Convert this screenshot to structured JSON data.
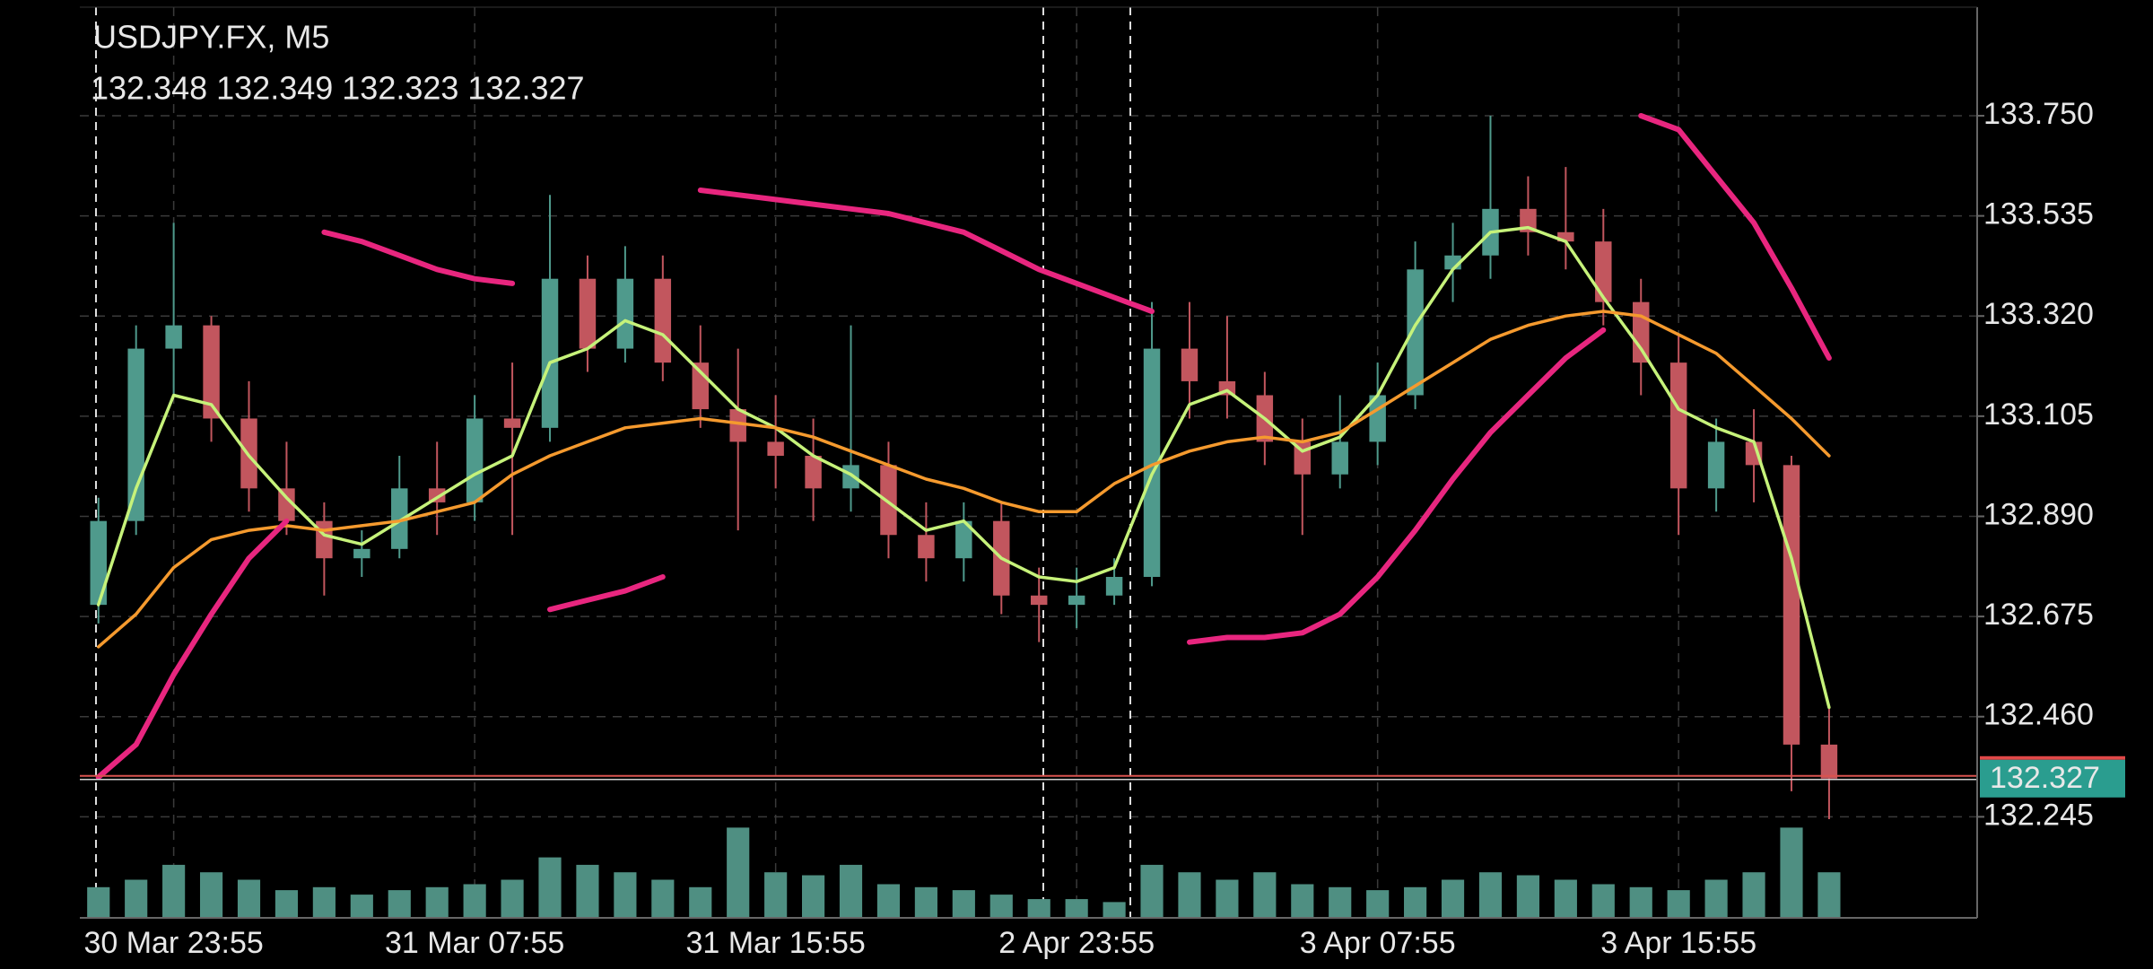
{
  "chart_data": {
    "type": "candlestick",
    "title": "USDJPY.FX, M5",
    "ohlc": [
      132.348,
      132.349,
      132.323,
      132.327
    ],
    "categories": [
      null,
      null,
      "30 Mar 23:55",
      null,
      null,
      null,
      null,
      null,
      null,
      null,
      "31 Mar 07:55",
      null,
      null,
      null,
      null,
      null,
      null,
      null,
      "31 Mar 15:55",
      null,
      null,
      null,
      null,
      null,
      null,
      null,
      "2 Apr 23:55",
      null,
      null,
      null,
      null,
      null,
      null,
      null,
      "3 Apr 07:55",
      null,
      null,
      null,
      null,
      null,
      null,
      null,
      "3 Apr 15:55",
      null,
      null,
      null,
      null
    ],
    "open": [
      132.7,
      132.88,
      133.25,
      133.3,
      133.1,
      132.95,
      132.88,
      132.8,
      132.82,
      132.95,
      132.92,
      133.1,
      133.08,
      133.4,
      133.25,
      133.4,
      133.22,
      133.12,
      133.05,
      133.02,
      132.95,
      133.0,
      132.85,
      132.8,
      132.88,
      132.72,
      132.7,
      132.72,
      132.76,
      133.25,
      133.18,
      133.15,
      133.05,
      132.98,
      133.05,
      133.15,
      133.42,
      133.45,
      133.55,
      133.5,
      133.48,
      133.35,
      133.22,
      132.95,
      133.05,
      133.0,
      132.4
    ],
    "high": [
      132.93,
      133.3,
      133.52,
      133.32,
      133.18,
      133.05,
      132.92,
      132.86,
      133.02,
      133.05,
      133.15,
      133.22,
      133.58,
      133.45,
      133.47,
      133.45,
      133.3,
      133.25,
      133.15,
      133.1,
      133.3,
      133.05,
      132.92,
      132.92,
      132.92,
      132.78,
      132.78,
      132.8,
      133.35,
      133.35,
      133.32,
      133.2,
      133.1,
      133.15,
      133.22,
      133.48,
      133.52,
      133.75,
      133.62,
      133.64,
      133.55,
      133.4,
      133.28,
      133.1,
      133.12,
      133.02,
      132.48
    ],
    "low": [
      132.66,
      132.85,
      133.15,
      133.05,
      132.9,
      132.85,
      132.72,
      132.76,
      132.8,
      132.85,
      132.88,
      132.85,
      133.05,
      133.2,
      133.22,
      133.18,
      133.08,
      132.86,
      132.95,
      132.88,
      132.9,
      132.8,
      132.75,
      132.75,
      132.68,
      132.62,
      132.65,
      132.7,
      132.74,
      133.1,
      133.1,
      133.0,
      132.85,
      132.95,
      133.0,
      133.12,
      133.35,
      133.4,
      133.45,
      133.42,
      133.3,
      133.15,
      132.85,
      132.9,
      132.92,
      132.3,
      132.24
    ],
    "close": [
      132.88,
      133.25,
      133.3,
      133.1,
      132.95,
      132.88,
      132.8,
      132.82,
      132.95,
      132.92,
      133.1,
      133.08,
      133.4,
      133.25,
      133.4,
      133.22,
      133.12,
      133.05,
      133.02,
      132.95,
      133.0,
      132.85,
      132.8,
      132.88,
      132.72,
      132.7,
      132.72,
      132.76,
      133.25,
      133.18,
      133.15,
      133.05,
      132.98,
      133.05,
      133.15,
      133.42,
      133.45,
      133.55,
      133.5,
      133.48,
      133.35,
      133.22,
      132.95,
      133.05,
      133.0,
      132.4,
      132.327
    ],
    "volume": [
      20,
      25,
      35,
      30,
      25,
      18,
      20,
      15,
      18,
      20,
      22,
      25,
      40,
      35,
      30,
      25,
      20,
      60,
      30,
      28,
      35,
      22,
      20,
      18,
      15,
      12,
      12,
      10,
      35,
      30,
      25,
      30,
      22,
      20,
      18,
      20,
      25,
      30,
      28,
      25,
      22,
      20,
      18,
      25,
      30,
      60,
      30
    ],
    "up_color": "#4f9a8c",
    "down_color": "#c2565e",
    "volume_color": "#4f8f82",
    "series": [
      {
        "color": "#c6f27a",
        "values": [
          132.7,
          132.95,
          133.15,
          133.13,
          133.02,
          132.93,
          132.85,
          132.83,
          132.88,
          132.93,
          132.98,
          133.02,
          133.22,
          133.25,
          133.31,
          133.28,
          133.2,
          133.12,
          133.08,
          133.02,
          132.98,
          132.92,
          132.86,
          132.88,
          132.8,
          132.76,
          132.75,
          132.78,
          132.98,
          133.13,
          133.16,
          133.1,
          133.03,
          133.06,
          133.15,
          133.3,
          133.42,
          133.5,
          133.51,
          133.48,
          133.36,
          133.25,
          133.12,
          133.08,
          133.05,
          132.8,
          132.48
        ]
      },
      {
        "color": "#f59a2e",
        "values": [
          132.61,
          132.68,
          132.78,
          132.84,
          132.86,
          132.87,
          132.86,
          132.87,
          132.88,
          132.9,
          132.92,
          132.98,
          133.02,
          133.05,
          133.08,
          133.09,
          133.1,
          133.09,
          133.08,
          133.06,
          133.03,
          133.0,
          132.97,
          132.95,
          132.92,
          132.9,
          132.9,
          132.96,
          133.0,
          133.03,
          133.05,
          133.06,
          133.05,
          133.07,
          133.12,
          133.17,
          133.22,
          133.27,
          133.3,
          133.32,
          133.33,
          133.32,
          133.28,
          133.24,
          133.17,
          133.1,
          133.02
        ]
      },
      {
        "color": "#e8267f",
        "values": [
          132.33,
          132.4,
          132.55,
          132.68,
          132.8,
          132.88,
          null,
          null,
          null,
          null,
          null,
          null,
          132.69,
          132.71,
          132.73,
          132.76,
          null,
          null,
          null,
          null,
          null,
          null,
          null,
          null,
          null,
          null,
          null,
          null,
          null,
          132.62,
          132.63,
          132.63,
          132.64,
          132.68,
          132.76,
          132.86,
          132.97,
          133.07,
          133.15,
          133.23,
          133.29,
          null,
          null,
          null,
          null,
          null,
          null
        ]
      },
      {
        "color": "#e8267f",
        "values": [
          null,
          null,
          null,
          null,
          null,
          null,
          133.5,
          133.48,
          133.45,
          133.42,
          133.4,
          133.39,
          null,
          null,
          null,
          null,
          133.59,
          133.58,
          133.57,
          133.56,
          133.55,
          133.54,
          133.52,
          133.5,
          133.46,
          133.42,
          133.39,
          133.36,
          133.33,
          null,
          null,
          null,
          null,
          null,
          null,
          null,
          null,
          null,
          null,
          null,
          null,
          133.75,
          133.72,
          133.62,
          133.52,
          133.38,
          133.23
        ]
      }
    ],
    "ylim": [
      132.03,
      133.983
    ],
    "yticks": [
      {
        "value": 133.75,
        "label": "133.750"
      },
      133.535,
      {
        "value": 133.32,
        "label": "133.320"
      },
      133.105,
      {
        "value": 132.89,
        "label": "132.890"
      },
      132.675,
      {
        "value": 132.46,
        "label": "132.460"
      },
      132.245
    ],
    "current_price": 132.327,
    "current_price_color": "#2a9d8f",
    "grid": true
  }
}
